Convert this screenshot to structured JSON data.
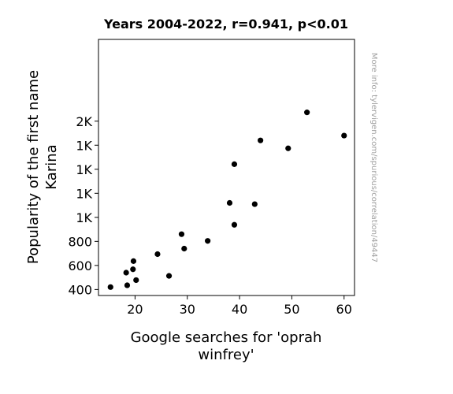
{
  "chart_data": {
    "type": "scatter",
    "title": "Years 2004-2022, r=0.941, p<0.01",
    "xlabel_lines": [
      "Google searches for 'oprah",
      "winfrey'"
    ],
    "ylabel_lines": [
      "Popularity of the first name",
      "Karina"
    ],
    "xlim": [
      13,
      62
    ],
    "ylim": [
      350,
      2480
    ],
    "x_ticks": [
      20,
      30,
      40,
      50,
      60
    ],
    "x_tick_labels": [
      "20",
      "30",
      "40",
      "50",
      "60"
    ],
    "y_ticks": [
      400,
      600,
      800,
      1000,
      1200,
      1400,
      1600,
      1800
    ],
    "y_tick_labels": [
      "400",
      "600",
      "800",
      "1K",
      "1K",
      "1K",
      "1K",
      "2K"
    ],
    "points": [
      {
        "x": 15.3,
        "y": 420
      },
      {
        "x": 18.5,
        "y": 435
      },
      {
        "x": 18.3,
        "y": 540
      },
      {
        "x": 19.6,
        "y": 568
      },
      {
        "x": 19.7,
        "y": 636
      },
      {
        "x": 20.2,
        "y": 478
      },
      {
        "x": 24.3,
        "y": 694
      },
      {
        "x": 26.5,
        "y": 513
      },
      {
        "x": 28.9,
        "y": 860
      },
      {
        "x": 29.4,
        "y": 740
      },
      {
        "x": 33.9,
        "y": 804
      },
      {
        "x": 38.1,
        "y": 1120
      },
      {
        "x": 39.0,
        "y": 938
      },
      {
        "x": 39.0,
        "y": 1442
      },
      {
        "x": 42.9,
        "y": 1110
      },
      {
        "x": 44.0,
        "y": 1640
      },
      {
        "x": 49.3,
        "y": 1574
      },
      {
        "x": 52.9,
        "y": 1873
      },
      {
        "x": 60.0,
        "y": 1680
      }
    ],
    "marker_color": "#000000",
    "grid": false,
    "watermark": "More info: tylervigen.com/spurious/correlation/49447"
  }
}
